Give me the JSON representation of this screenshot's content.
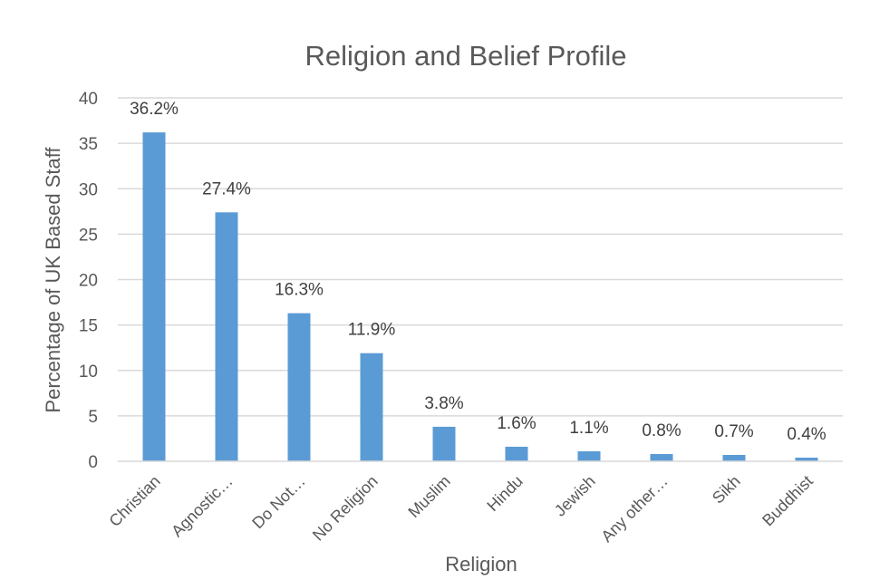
{
  "chart_data": {
    "type": "bar",
    "title": "Religion and Belief Profile",
    "xlabel": "Religion",
    "ylabel": "Percentage of UK Based Staff",
    "categories": [
      "Christian",
      "Agnostic…",
      "Do Not…",
      "No Religion",
      "Muslim",
      "Hindu",
      "Jewish",
      "Any other…",
      "Sikh",
      "Buddhist"
    ],
    "values": [
      36.2,
      27.4,
      16.3,
      11.9,
      3.8,
      1.6,
      1.1,
      0.8,
      0.7,
      0.4
    ],
    "data_labels": [
      "36.2%",
      "27.4%",
      "16.3%",
      "11.9%",
      "3.8%",
      "1.6%",
      "1.1%",
      "0.8%",
      "0.7%",
      "0.4%"
    ],
    "ylim": [
      0,
      40
    ],
    "yticks": [
      0,
      5,
      10,
      15,
      20,
      25,
      30,
      35,
      40
    ],
    "grid": true,
    "legend": "none",
    "colors": {
      "bar": "#5b9bd5",
      "grid": "#d9d9d9",
      "text": "#595959"
    }
  }
}
